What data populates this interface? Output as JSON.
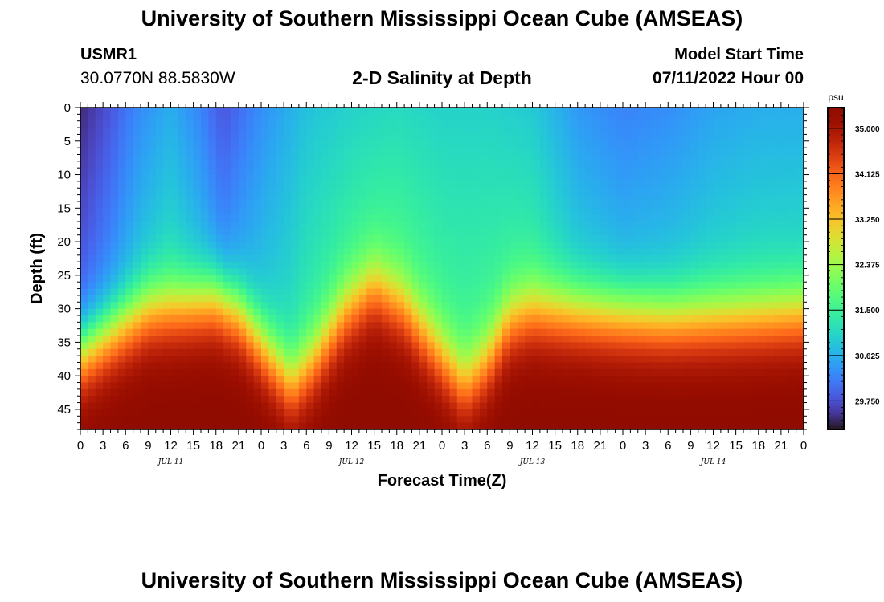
{
  "header": {
    "title": "University of Southern Mississippi Ocean Cube (AMSEAS)",
    "station_id": "USMR1",
    "coordinates": "30.0770N  88.5830W",
    "subtitle": "2-D Salinity at Depth",
    "start_label": "Model Start Time",
    "start_value": "07/11/2022 Hour 00"
  },
  "footer": {
    "title": "University of Southern Mississippi Ocean Cube (AMSEAS)"
  },
  "chart_data": {
    "type": "heatmap",
    "title": "2-D Salinity at Depth",
    "xlabel": "Forecast Time(Z)",
    "ylabel": "Depth (ft)",
    "x_range_hours": [
      0,
      96
    ],
    "y_range_ft": [
      0,
      48
    ],
    "x_tick_labels": [
      "0",
      "3",
      "6",
      "9",
      "12",
      "15",
      "18",
      "21",
      "0",
      "3",
      "6",
      "9",
      "12",
      "15",
      "18",
      "21",
      "0",
      "3",
      "6",
      "9",
      "12",
      "15",
      "18",
      "21",
      "0",
      "3",
      "6",
      "9",
      "12",
      "15",
      "18",
      "21",
      "0"
    ],
    "date_labels": [
      {
        "hour": 12,
        "label": "JUL 11"
      },
      {
        "hour": 36,
        "label": "JUL 12"
      },
      {
        "hour": 60,
        "label": "JUL 13"
      },
      {
        "hour": 84,
        "label": "JUL 14"
      }
    ],
    "y_tick_labels": [
      "0",
      "5",
      "10",
      "15",
      "20",
      "25",
      "30",
      "35",
      "40",
      "45"
    ],
    "y_tick_values": [
      0,
      5,
      10,
      15,
      20,
      25,
      30,
      35,
      40,
      45
    ],
    "colorbar": {
      "unit": "psu",
      "min": 29.2,
      "max": 35.4,
      "tick_values": [
        35.0,
        34.125,
        33.25,
        32.375,
        31.5,
        30.625,
        29.75
      ],
      "tick_labels": [
        "35.000",
        "34.125",
        "33.250",
        "32.375",
        "31.500",
        "30.625",
        "29.750"
      ],
      "colormap": "turbo"
    },
    "surface_salinity_psu": [
      [
        0,
        29.4
      ],
      [
        4,
        29.8
      ],
      [
        8,
        30.3
      ],
      [
        12,
        30.6
      ],
      [
        16,
        30.2
      ],
      [
        19,
        29.8
      ],
      [
        24,
        30.3
      ],
      [
        30,
        30.8
      ],
      [
        36,
        31.0
      ],
      [
        42,
        31.1
      ],
      [
        48,
        31.0
      ],
      [
        54,
        31.0
      ],
      [
        60,
        30.9
      ],
      [
        66,
        30.4
      ],
      [
        72,
        30.2
      ],
      [
        78,
        30.3
      ],
      [
        84,
        30.5
      ],
      [
        90,
        30.6
      ],
      [
        96,
        30.6
      ]
    ],
    "halocline_depth_ft": [
      [
        0,
        34
      ],
      [
        4,
        31
      ],
      [
        9,
        27.5
      ],
      [
        13,
        27
      ],
      [
        18,
        26
      ],
      [
        21,
        28
      ],
      [
        25,
        34
      ],
      [
        28,
        38.5
      ],
      [
        31,
        35
      ],
      [
        35,
        28
      ],
      [
        39,
        24
      ],
      [
        43,
        27
      ],
      [
        47,
        33
      ],
      [
        51,
        38.5
      ],
      [
        54,
        35
      ],
      [
        57,
        29
      ],
      [
        60,
        27.5
      ],
      [
        66,
        28
      ],
      [
        72,
        28.5
      ],
      [
        78,
        29
      ],
      [
        84,
        28.8
      ],
      [
        90,
        28.5
      ],
      [
        96,
        28
      ]
    ],
    "deep_salinity_psu": 35.1
  }
}
